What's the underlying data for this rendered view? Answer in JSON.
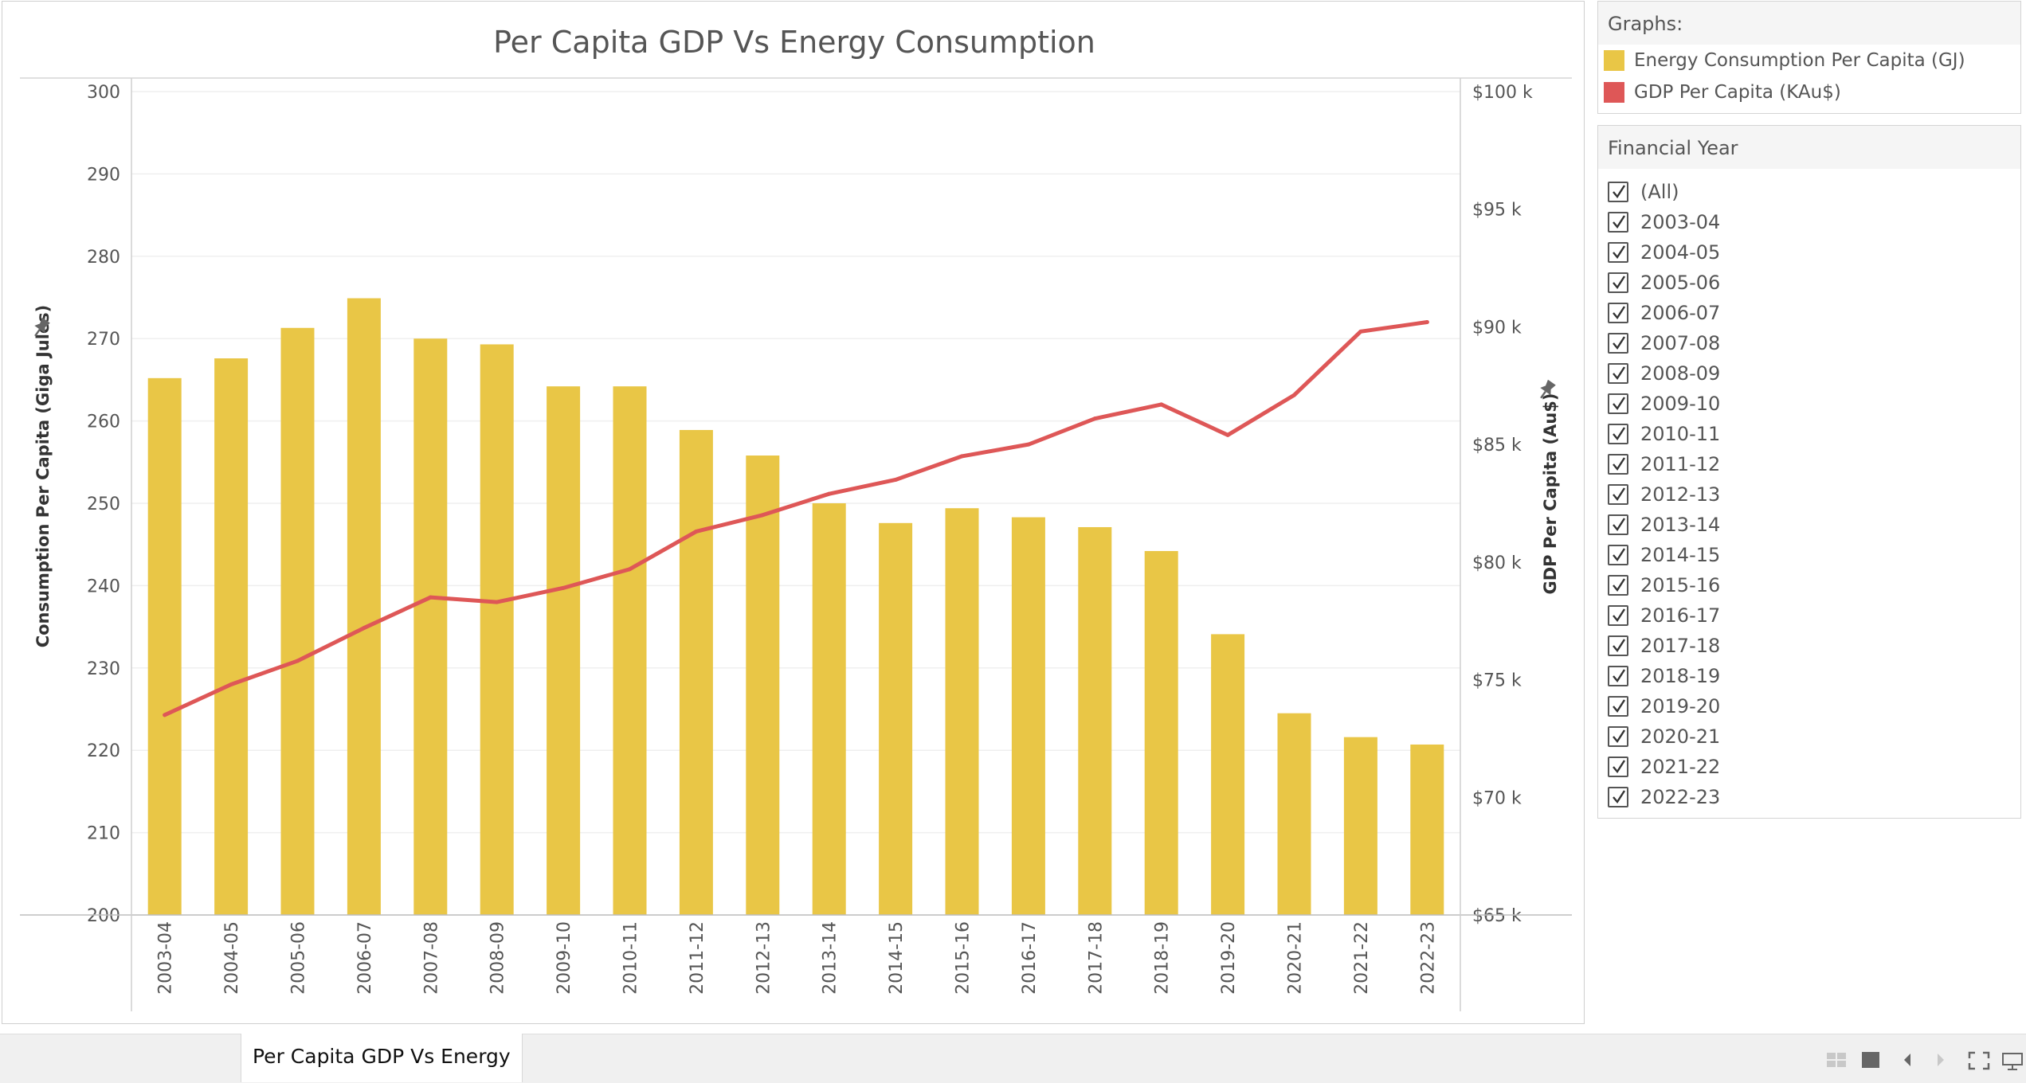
{
  "chart_data": {
    "type": "bar+line",
    "title": "Per Capita GDP Vs Energy Consumption",
    "categories": [
      "2003-04",
      "2004-05",
      "2005-06",
      "2006-07",
      "2007-08",
      "2008-09",
      "2009-10",
      "2010-11",
      "2011-12",
      "2012-13",
      "2013-14",
      "2014-15",
      "2015-16",
      "2016-17",
      "2017-18",
      "2018-19",
      "2019-20",
      "2020-21",
      "2021-22",
      "2022-23"
    ],
    "series": [
      {
        "name": "Energy Consumption Per Capita (GJ)",
        "type": "bar",
        "axis": "left",
        "color": "#E9C646",
        "values": [
          265.2,
          267.6,
          271.3,
          274.9,
          270.0,
          269.3,
          264.2,
          264.2,
          258.9,
          255.8,
          250.0,
          247.6,
          249.4,
          248.3,
          247.1,
          244.2,
          234.1,
          224.5,
          221.6,
          220.7
        ]
      },
      {
        "name": "GDP Per Capita (KAu$)",
        "type": "line",
        "axis": "right",
        "color": "#DE5757",
        "values": [
          73.5,
          74.8,
          75.8,
          77.2,
          78.5,
          78.3,
          78.9,
          79.7,
          81.3,
          82.0,
          82.9,
          83.5,
          84.5,
          85.0,
          86.1,
          86.7,
          85.4,
          87.1,
          89.8,
          90.2
        ]
      }
    ],
    "left_axis": {
      "label": "Consumption Per Capita (Giga Jules)",
      "min": 200,
      "max": 300,
      "ticks": [
        "300",
        "290",
        "280",
        "270",
        "260",
        "250",
        "240",
        "230",
        "220",
        "210",
        "200"
      ]
    },
    "right_axis": {
      "label": "GDP Per Capita (Au$)",
      "min": 65,
      "max": 100,
      "ticks": [
        "$100 k",
        "$95 k",
        "$90 k",
        "$85 k",
        "$80 k",
        "$75 k",
        "$70 k",
        "$65 k"
      ]
    },
    "grid": true
  },
  "legend": {
    "title": "Graphs:",
    "items": [
      {
        "label": "Energy Consumption Per Capita (GJ)",
        "color": "#E9C646"
      },
      {
        "label": "GDP Per Capita (KAu$)",
        "color": "#DE5757"
      }
    ]
  },
  "filter": {
    "title": "Financial Year",
    "items": [
      "(All)",
      "2003-04",
      "2004-05",
      "2005-06",
      "2006-07",
      "2007-08",
      "2008-09",
      "2009-10",
      "2010-11",
      "2011-12",
      "2012-13",
      "2013-14",
      "2014-15",
      "2015-16",
      "2016-17",
      "2017-18",
      "2018-19",
      "2019-20",
      "2020-21",
      "2021-22",
      "2022-23"
    ]
  },
  "sheet_tab": {
    "label": "Per Capita GDP Vs Energy"
  },
  "toolbar": {
    "icons": [
      "grid-view-icon",
      "single-view-icon",
      "previous-icon",
      "next-icon",
      "fullscreen-icon",
      "presentation-icon"
    ]
  }
}
